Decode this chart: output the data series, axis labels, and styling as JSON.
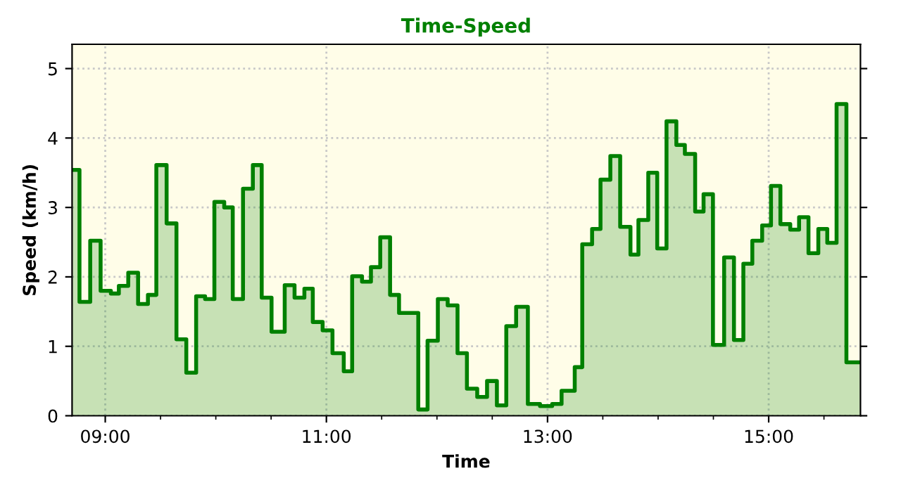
{
  "chart_data": {
    "type": "area",
    "title": "Time-Speed",
    "xlabel": "Time",
    "ylabel": "Speed (km/h)",
    "xlim": [
      8.7,
      15.83
    ],
    "ylim": [
      0,
      5.35
    ],
    "xticks": [
      {
        "value": 9,
        "label": "09:00"
      },
      {
        "value": 9.5,
        "label": null
      },
      {
        "value": 10,
        "label": null
      },
      {
        "value": 10.5,
        "label": null
      },
      {
        "value": 11,
        "label": "11:00"
      },
      {
        "value": 11.5,
        "label": null
      },
      {
        "value": 12,
        "label": null
      },
      {
        "value": 12.5,
        "label": null
      },
      {
        "value": 13,
        "label": "13:00"
      },
      {
        "value": 13.5,
        "label": null
      },
      {
        "value": 14,
        "label": null
      },
      {
        "value": 14.5,
        "label": null
      },
      {
        "value": 15,
        "label": "15:00"
      },
      {
        "value": 15.5,
        "label": null
      }
    ],
    "yticks": [
      0,
      1,
      2,
      3,
      4,
      5
    ],
    "grid": true,
    "series": [
      {
        "color": "#008000",
        "x": [
          8.7,
          8.767,
          8.767,
          8.864,
          8.864,
          8.958,
          8.958,
          9.051,
          9.051,
          9.123,
          9.123,
          9.208,
          9.208,
          9.297,
          9.297,
          9.386,
          9.386,
          9.462,
          9.462,
          9.555,
          9.555,
          9.644,
          9.644,
          9.733,
          9.733,
          9.822,
          9.822,
          9.903,
          9.903,
          9.987,
          9.987,
          10.076,
          10.076,
          10.153,
          10.153,
          10.246,
          10.246,
          10.335,
          10.335,
          10.415,
          10.415,
          10.504,
          10.504,
          10.623,
          10.623,
          10.712,
          10.712,
          10.801,
          10.801,
          10.877,
          10.877,
          10.966,
          10.966,
          11.055,
          11.055,
          11.157,
          11.157,
          11.233,
          11.233,
          11.322,
          11.322,
          11.403,
          11.403,
          11.487,
          11.487,
          11.576,
          11.576,
          11.657,
          11.657,
          11.831,
          11.831,
          11.915,
          11.915,
          12.008,
          12.008,
          12.097,
          12.097,
          12.186,
          12.186,
          12.271,
          12.271,
          12.364,
          12.364,
          12.453,
          12.453,
          12.542,
          12.542,
          12.627,
          12.627,
          12.716,
          12.716,
          12.822,
          12.822,
          12.932,
          12.932,
          13.042,
          13.042,
          13.127,
          13.127,
          13.246,
          13.246,
          13.314,
          13.314,
          13.403,
          13.403,
          13.479,
          13.479,
          13.568,
          13.568,
          13.657,
          13.657,
          13.75,
          13.75,
          13.822,
          13.822,
          13.911,
          13.911,
          13.992,
          13.992,
          14.076,
          14.076,
          14.165,
          14.165,
          14.242,
          14.242,
          14.335,
          14.335,
          14.411,
          14.411,
          14.496,
          14.496,
          14.597,
          14.597,
          14.686,
          14.686,
          14.771,
          14.771,
          14.852,
          14.852,
          14.941,
          14.941,
          15.021,
          15.021,
          15.106,
          15.106,
          15.195,
          15.195,
          15.275,
          15.275,
          15.36,
          15.36,
          15.449,
          15.449,
          15.53,
          15.53,
          15.614,
          15.614,
          15.703,
          15.703,
          15.83
        ],
        "values": [
          3.54,
          3.54,
          1.64,
          1.64,
          2.52,
          2.52,
          1.8,
          1.8,
          1.76,
          1.76,
          1.87,
          1.87,
          2.06,
          2.06,
          1.61,
          1.61,
          1.74,
          1.74,
          3.61,
          3.61,
          2.77,
          2.77,
          1.1,
          1.1,
          0.62,
          0.62,
          1.72,
          1.72,
          1.68,
          1.68,
          3.08,
          3.08,
          3.0,
          3.0,
          1.68,
          1.68,
          3.27,
          3.27,
          3.61,
          3.61,
          1.7,
          1.7,
          1.21,
          1.21,
          1.88,
          1.88,
          1.7,
          1.7,
          1.83,
          1.83,
          1.35,
          1.35,
          1.23,
          1.23,
          0.9,
          0.9,
          0.64,
          0.64,
          2.01,
          2.01,
          1.93,
          1.93,
          2.14,
          2.14,
          2.57,
          2.57,
          1.74,
          1.74,
          1.48,
          1.48,
          0.09,
          0.09,
          1.08,
          1.08,
          1.68,
          1.68,
          1.59,
          1.59,
          0.9,
          0.9,
          0.39,
          0.39,
          0.27,
          0.27,
          0.5,
          0.5,
          0.15,
          0.15,
          1.29,
          1.29,
          1.57,
          1.57,
          0.17,
          0.17,
          0.14,
          0.14,
          0.17,
          0.17,
          0.36,
          0.36,
          0.7,
          0.7,
          2.47,
          2.47,
          2.69,
          2.69,
          3.4,
          3.4,
          3.74,
          3.74,
          2.72,
          2.72,
          2.32,
          2.32,
          2.82,
          2.82,
          3.5,
          3.5,
          2.41,
          2.41,
          4.24,
          4.24,
          3.9,
          3.9,
          3.77,
          3.77,
          2.94,
          2.94,
          3.19,
          3.19,
          1.02,
          1.02,
          2.28,
          2.28,
          1.09,
          1.09,
          2.19,
          2.19,
          2.52,
          2.52,
          2.74,
          2.74,
          3.31,
          3.31,
          2.76,
          2.76,
          2.68,
          2.68,
          2.86,
          2.86,
          2.34,
          2.34,
          2.69,
          2.69,
          2.49,
          2.49,
          4.49,
          4.49,
          0.77,
          0.77
        ]
      }
    ]
  }
}
